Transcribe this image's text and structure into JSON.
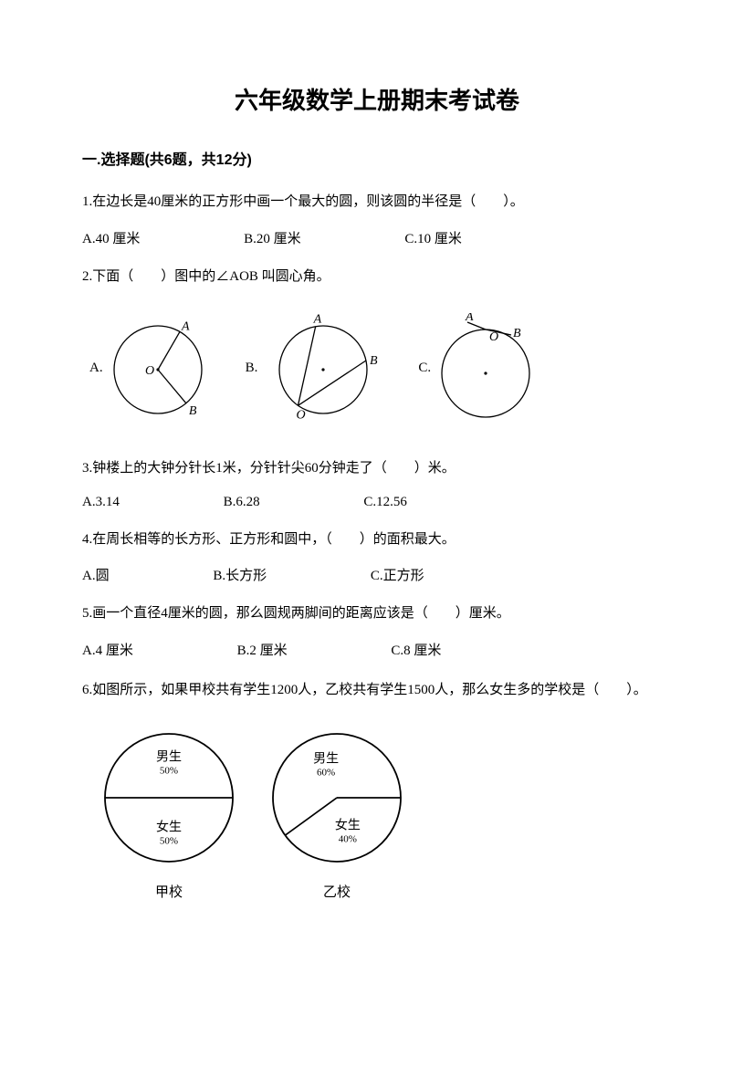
{
  "title": "六年级数学上册期末考试卷",
  "section1": {
    "header": "一.选择题(共6题，共12分)",
    "q1": {
      "text": "1.在边长是40厘米的正方形中画一个最大的圆，则该圆的半径是（　　）。",
      "a": "A.40 厘米",
      "b": "B.20 厘米",
      "c": "C.10 厘米"
    },
    "q2": {
      "text": "2.下面（　　）图中的∠AOB 叫圆心角。",
      "optA": "A.",
      "optB": "B.",
      "optC": "C."
    },
    "q3": {
      "text": "3.钟楼上的大钟分针长1米，分针针尖60分钟走了（　　）米。",
      "a": "A.3.14",
      "b": "B.6.28",
      "c": "C.12.56"
    },
    "q4": {
      "text": "4.在周长相等的长方形、正方形和圆中，（　　）的面积最大。",
      "a": "A.圆",
      "b": "B.长方形",
      "c": "C.正方形"
    },
    "q5": {
      "text": "5.画一个直径4厘米的圆，那么圆规两脚间的距离应该是（　　）厘米。",
      "a": "A.4 厘米",
      "b": "B.2 厘米",
      "c": "C.8 厘米"
    },
    "q6": {
      "text": "6.如图所示，如果甲校共有学生1200人，乙校共有学生1500人，那么女生多的学校是（　　）。"
    }
  },
  "q2_diagrams": {
    "type": "geometric-circle-diagrams",
    "stroke": "#000000",
    "radius": 48,
    "labels": {
      "A": "A",
      "B": "B",
      "O": "O"
    },
    "font": {
      "style": "italic",
      "size": 14
    }
  },
  "pies": {
    "type": "pie",
    "stroke": "#000000",
    "background": "#ffffff",
    "radius": 70,
    "label_fontsize": 14,
    "pct_fontsize": 11,
    "jia": {
      "caption": "甲校",
      "slices": [
        {
          "label": "女生",
          "pct": "50%",
          "value": 50,
          "start": 90,
          "end": 270
        },
        {
          "label": "男生",
          "pct": "50%",
          "value": 50,
          "start": 270,
          "end": 450
        }
      ]
    },
    "yi": {
      "caption": "乙校",
      "slices": [
        {
          "label": "女生",
          "pct": "40%",
          "value": 40,
          "start": 90,
          "end": 234
        },
        {
          "label": "男生",
          "pct": "60%",
          "value": 60,
          "start": 234,
          "end": 450
        }
      ]
    }
  }
}
